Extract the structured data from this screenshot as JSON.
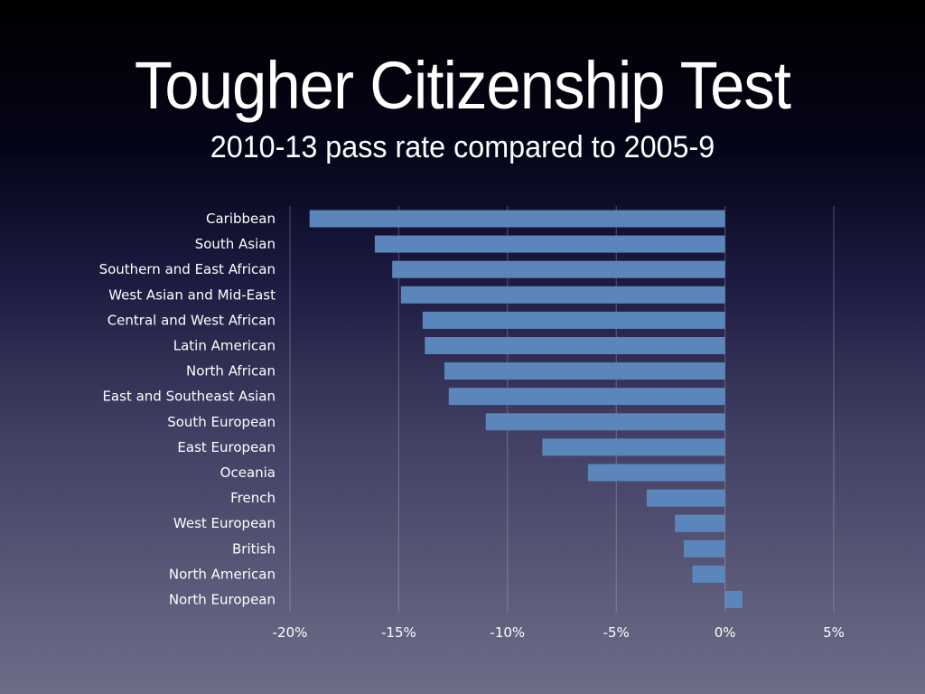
{
  "title": "Tougher Citizenship Test",
  "subtitle": "2010-13 pass rate compared to 2005-9",
  "chart_data": {
    "type": "bar",
    "orientation": "horizontal",
    "title": "Tougher Citizenship Test",
    "subtitle": "2010-13 pass rate compared to 2005-9",
    "xlabel": "",
    "ylabel": "",
    "xlim": [
      -20,
      5
    ],
    "xticks": [
      -20,
      -15,
      -10,
      -5,
      0,
      5
    ],
    "xtick_labels": [
      "-20%",
      "-15%",
      "-10%",
      "-5%",
      "0%",
      "5%"
    ],
    "grid": true,
    "color": "#5b86bb",
    "categories": [
      "Caribbean",
      "South Asian",
      "Southern and East African",
      "West Asian and Mid-East",
      "Central and West African",
      "Latin American",
      "North African",
      "East and Southeast Asian",
      "South European",
      "East European",
      "Oceania",
      "French",
      "West European",
      "British",
      "North American",
      "North European"
    ],
    "values": [
      -19.1,
      -16.1,
      -15.3,
      -14.9,
      -13.9,
      -13.8,
      -12.9,
      -12.7,
      -11.0,
      -8.4,
      -6.3,
      -3.6,
      -2.3,
      -1.9,
      -1.5,
      0.8
    ]
  }
}
